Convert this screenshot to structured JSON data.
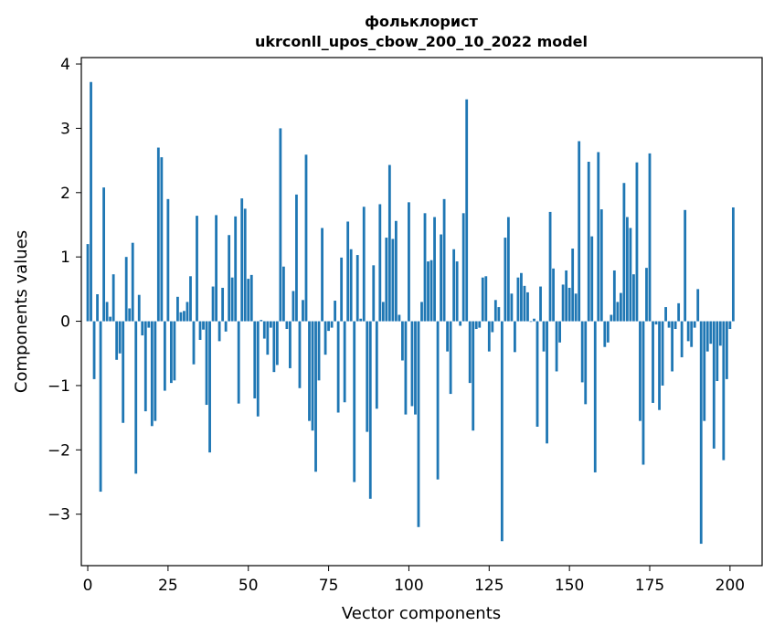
{
  "chart_data": {
    "type": "bar",
    "title": "фольклорист",
    "subtitle": "ukrconll_upos_cbow_200_10_2022 model",
    "xlabel": "Vector components",
    "ylabel": "Components values",
    "xlim": [
      -2,
      210
    ],
    "ylim": [
      -3.8,
      4.1
    ],
    "xticks": [
      0,
      25,
      50,
      75,
      100,
      125,
      150,
      175,
      200
    ],
    "xtick_labels": [
      "0",
      "25",
      "50",
      "75",
      "100",
      "125",
      "150",
      "175",
      "200"
    ],
    "yticks": [
      -3,
      -2,
      -1,
      0,
      1,
      2,
      3,
      4
    ],
    "ytick_labels": [
      "−3",
      "−2",
      "−1",
      "0",
      "1",
      "2",
      "3",
      "4"
    ],
    "bar_color": "#1f77b4",
    "grid": false,
    "legend": "none",
    "values": [
      1.2,
      3.72,
      -0.9,
      0.42,
      -2.65,
      2.08,
      0.3,
      0.07,
      0.73,
      -0.6,
      -0.5,
      -1.58,
      1.0,
      0.2,
      1.22,
      -2.37,
      0.41,
      -0.22,
      -1.4,
      -0.1,
      -1.63,
      -1.55,
      2.7,
      2.55,
      -1.08,
      1.9,
      -0.96,
      -0.92,
      0.38,
      0.14,
      0.16,
      0.3,
      0.7,
      -0.67,
      1.64,
      -0.29,
      -0.13,
      -1.3,
      -2.04,
      0.54,
      1.65,
      -0.31,
      0.52,
      -0.16,
      1.34,
      0.68,
      1.63,
      -1.28,
      1.91,
      1.75,
      0.66,
      0.72,
      -1.2,
      -1.48,
      0.02,
      -0.27,
      -0.52,
      -0.1,
      -0.79,
      -0.68,
      3.0,
      0.85,
      -0.12,
      -0.73,
      0.47,
      1.97,
      -1.04,
      0.33,
      2.59,
      -1.55,
      -1.7,
      -2.34,
      -0.92,
      1.45,
      -0.52,
      -0.15,
      -0.1,
      0.32,
      -1.42,
      0.99,
      -1.26,
      1.55,
      1.12,
      -2.5,
      1.03,
      0.04,
      1.78,
      -1.72,
      -2.76,
      0.87,
      -1.36,
      1.82,
      0.3,
      1.3,
      2.43,
      1.28,
      1.56,
      0.1,
      -0.61,
      -1.45,
      1.85,
      -1.32,
      -1.45,
      -3.2,
      0.3,
      1.68,
      0.93,
      0.95,
      1.62,
      -2.46,
      1.35,
      1.9,
      -0.47,
      -1.13,
      1.12,
      0.93,
      -0.07,
      1.68,
      3.45,
      -0.96,
      -1.7,
      -0.12,
      -0.1,
      0.68,
      0.7,
      -0.47,
      -0.17,
      0.33,
      0.22,
      -3.42,
      1.3,
      1.62,
      0.43,
      -0.48,
      0.68,
      0.75,
      0.55,
      0.45,
      -0.01,
      0.04,
      -1.64,
      0.54,
      -0.47,
      -1.9,
      1.7,
      0.82,
      -0.78,
      -0.33,
      0.57,
      0.79,
      0.52,
      1.13,
      0.43,
      2.8,
      -0.95,
      -1.29,
      2.48,
      1.32,
      -2.35,
      2.63,
      1.74,
      -0.4,
      -0.33,
      0.1,
      0.79,
      0.3,
      0.44,
      2.15,
      1.62,
      1.45,
      0.73,
      2.47,
      -1.55,
      -2.23,
      0.83,
      2.61,
      -1.27,
      -0.05,
      -1.38,
      -1.0,
      0.22,
      -0.1,
      -0.78,
      -0.12,
      0.28,
      -0.56,
      1.73,
      -0.31,
      -0.4,
      -0.1,
      0.5,
      -3.46,
      -1.55,
      -0.47,
      -0.35,
      -1.98,
      -0.93,
      -0.38,
      -2.16,
      -0.9,
      -0.12,
      1.77
    ]
  }
}
